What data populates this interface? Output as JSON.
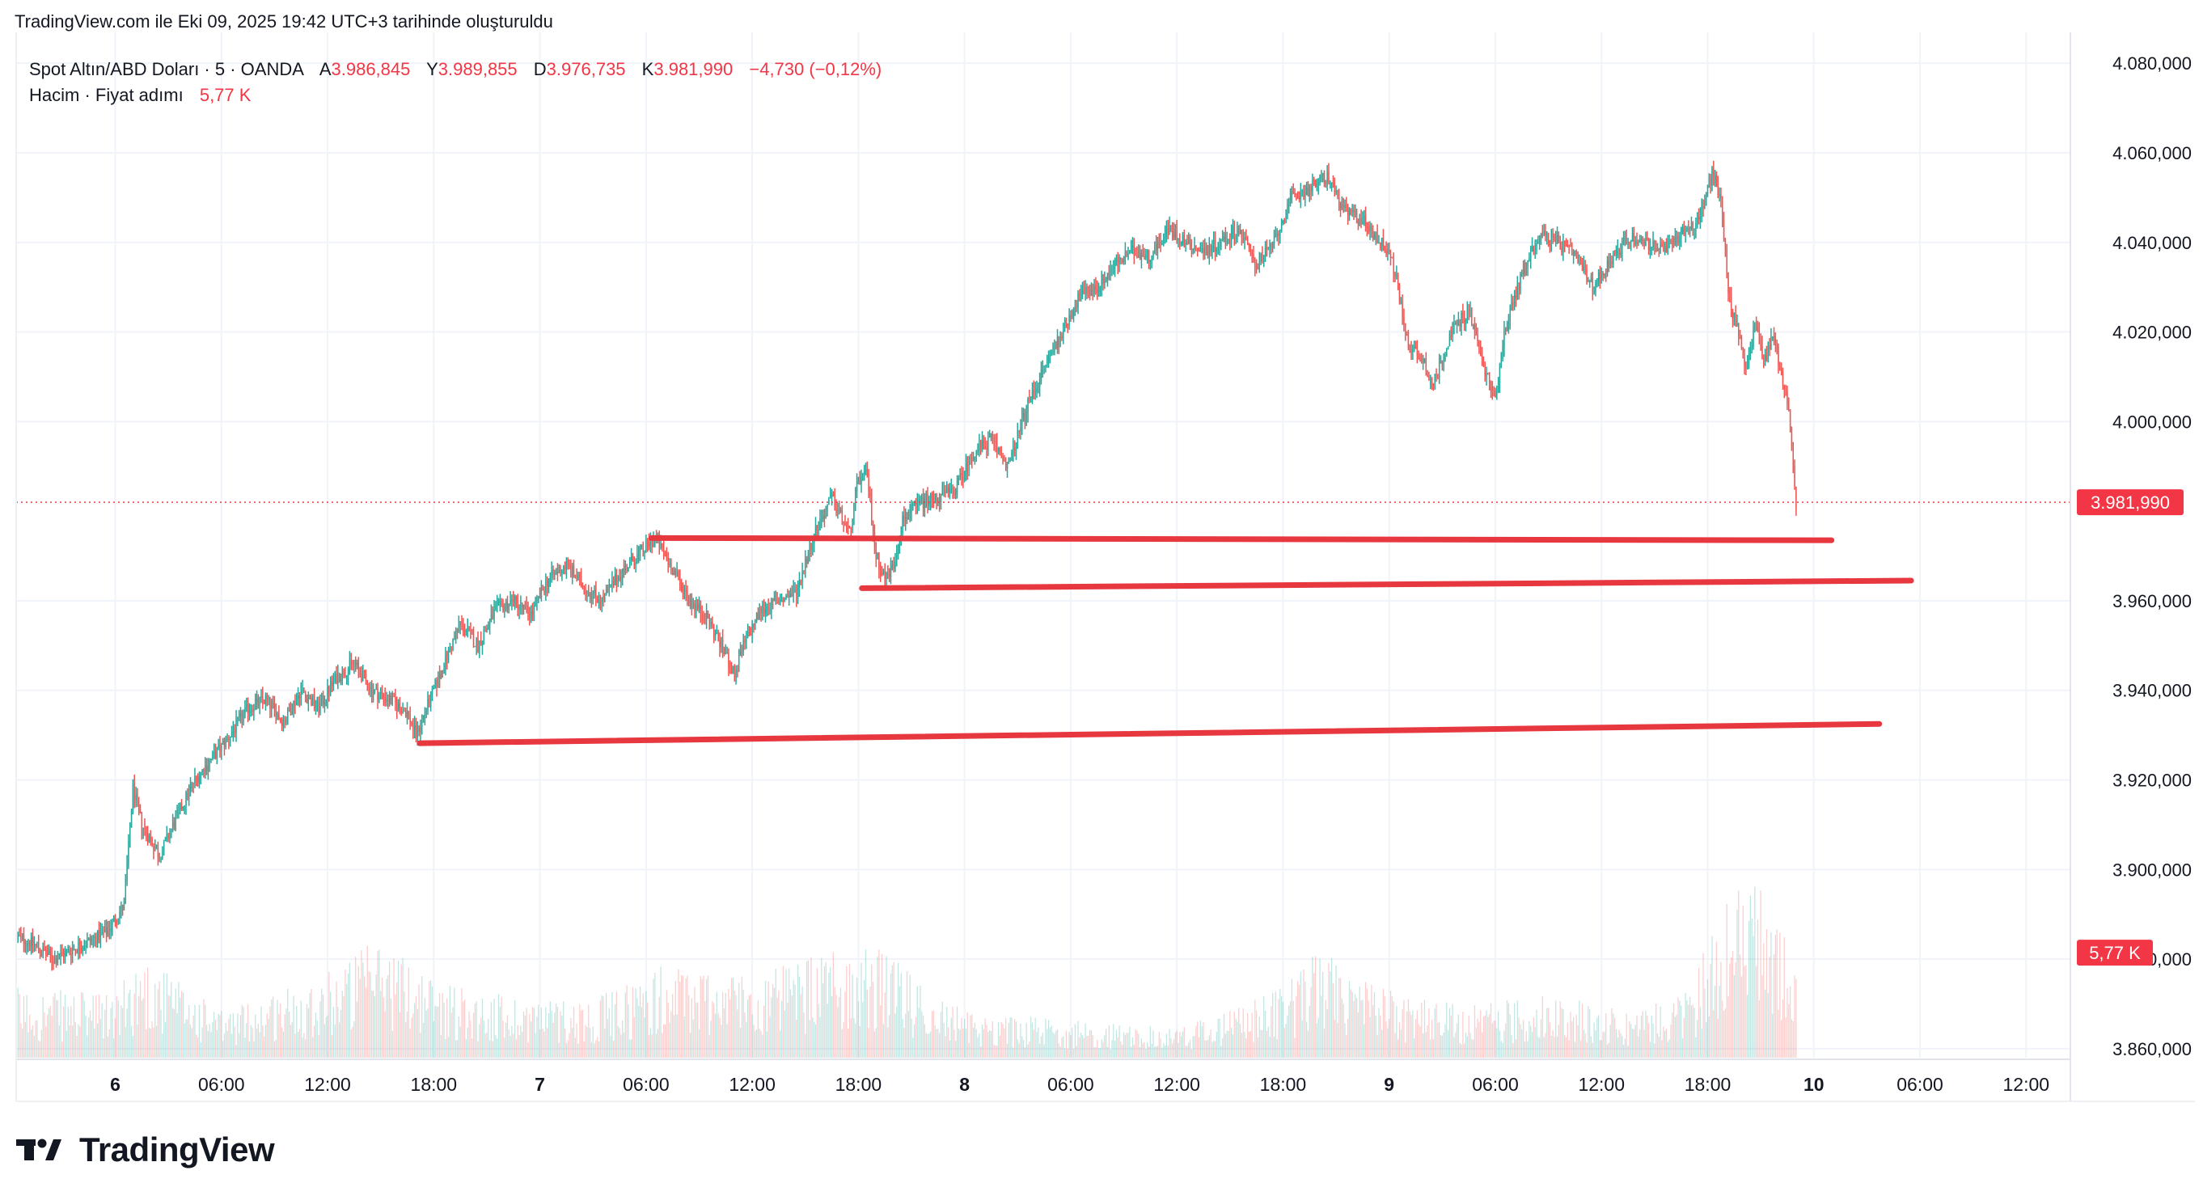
{
  "caption": "TradingView.com ile Eki 09, 2025 19:42 UTC+3 tarihinde oluşturuldu",
  "legend": {
    "symbol": "Spot Altın/ABD Doları · 5 · OANDA",
    "open_key": "A",
    "open": "3.986,845",
    "high_key": "Y",
    "high": "3.989,855",
    "low_key": "D",
    "low": "3.976,735",
    "close_key": "K",
    "close": "3.981,990",
    "change": "−4,730 (−0,12%)",
    "volume_label": "Hacim · Fiyat adımı",
    "volume_value": "5,77 K"
  },
  "brand": "TradingView",
  "colors": {
    "up": "#26a69a",
    "down": "#ef5350",
    "line": "#e8383f",
    "badge": "#f23645",
    "grid": "#f0f3fa",
    "text": "#131722"
  },
  "chart_data": {
    "type": "candlestick",
    "symbol": "Spot Altın/ABD Doları",
    "timeframe": "5",
    "exchange": "OANDA",
    "y_axis": {
      "ticks": [
        "4.080,000",
        "4.060,000",
        "4.040,000",
        "4.020,000",
        "4.000,000",
        "3.960,000",
        "3.940,000",
        "3.920,000",
        "3.900,000",
        "3.880,000",
        "3.860,000"
      ],
      "tick_values": [
        4080,
        4060,
        4040,
        4020,
        4000,
        3960,
        3940,
        3920,
        3900,
        3880,
        3860
      ],
      "range": [
        3858,
        4084
      ]
    },
    "x_axis": {
      "ticks": [
        "6",
        "06:00",
        "12:00",
        "18:00",
        "7",
        "06:00",
        "12:00",
        "18:00",
        "8",
        "06:00",
        "12:00",
        "18:00",
        "9",
        "06:00",
        "12:00",
        "18:00",
        "10",
        "06:00",
        "12:00"
      ],
      "tick_hours": [
        0,
        6,
        12,
        18,
        24,
        30,
        36,
        42,
        48,
        54,
        60,
        66,
        72,
        78,
        84,
        90,
        96,
        102,
        108
      ],
      "bold_ticks": [
        "6",
        "7",
        "8",
        "9",
        "10"
      ],
      "range_hours": [
        -5.6,
        110.5
      ]
    },
    "price_path": [
      [
        -5.5,
        3885
      ],
      [
        -4.5,
        3883
      ],
      [
        -3.5,
        3880
      ],
      [
        -2.5,
        3882
      ],
      [
        -1.5,
        3884
      ],
      [
        -0.5,
        3886
      ],
      [
        0.5,
        3892
      ],
      [
        1.0,
        3918
      ],
      [
        1.5,
        3910
      ],
      [
        2.5,
        3903
      ],
      [
        3.5,
        3912
      ],
      [
        4.5,
        3920
      ],
      [
        5.5,
        3925
      ],
      [
        6.5,
        3930
      ],
      [
        7.5,
        3936
      ],
      [
        8.5,
        3938
      ],
      [
        9.5,
        3933
      ],
      [
        10.5,
        3940
      ],
      [
        11.5,
        3936
      ],
      [
        12.5,
        3943
      ],
      [
        13.5,
        3946
      ],
      [
        14.5,
        3940
      ],
      [
        15.5,
        3938
      ],
      [
        16.5,
        3935
      ],
      [
        17.0,
        3930
      ],
      [
        17.5,
        3935
      ],
      [
        18.5,
        3945
      ],
      [
        19.5,
        3955
      ],
      [
        20.5,
        3950
      ],
      [
        21.5,
        3958
      ],
      [
        22.5,
        3960
      ],
      [
        23.5,
        3957
      ],
      [
        24.5,
        3965
      ],
      [
        25.5,
        3968
      ],
      [
        26.5,
        3963
      ],
      [
        27.5,
        3960
      ],
      [
        28.5,
        3966
      ],
      [
        29.5,
        3970
      ],
      [
        30.5,
        3974
      ],
      [
        31.5,
        3967
      ],
      [
        32.5,
        3960
      ],
      [
        33.5,
        3956
      ],
      [
        34.5,
        3948
      ],
      [
        35.0,
        3943
      ],
      [
        35.5,
        3950
      ],
      [
        36.5,
        3958
      ],
      [
        37.5,
        3960
      ],
      [
        38.5,
        3962
      ],
      [
        39.5,
        3975
      ],
      [
        40.5,
        3983
      ],
      [
        41.0,
        3979
      ],
      [
        41.5,
        3975
      ],
      [
        42.0,
        3987
      ],
      [
        42.5,
        3988
      ],
      [
        43.0,
        3970
      ],
      [
        43.5,
        3965
      ],
      [
        44.0,
        3968
      ],
      [
        44.5,
        3978
      ],
      [
        45.5,
        3982
      ],
      [
        46.5,
        3983
      ],
      [
        47.5,
        3985
      ],
      [
        48.5,
        3993
      ],
      [
        49.5,
        3996
      ],
      [
        50.5,
        3990
      ],
      [
        51.5,
        4003
      ],
      [
        52.5,
        4012
      ],
      [
        53.5,
        4020
      ],
      [
        54.5,
        4028
      ],
      [
        55.5,
        4030
      ],
      [
        56.5,
        4035
      ],
      [
        57.5,
        4038
      ],
      [
        58.5,
        4037
      ],
      [
        59.5,
        4043
      ],
      [
        60.5,
        4040
      ],
      [
        61.5,
        4038
      ],
      [
        62.5,
        4040
      ],
      [
        63.5,
        4043
      ],
      [
        64.5,
        4035
      ],
      [
        65.5,
        4040
      ],
      [
        66.5,
        4050
      ],
      [
        67.5,
        4052
      ],
      [
        68.5,
        4055
      ],
      [
        69.5,
        4047
      ],
      [
        70.5,
        4045
      ],
      [
        71.5,
        4040
      ],
      [
        72.0,
        4038
      ],
      [
        72.5,
        4030
      ],
      [
        73.0,
        4018
      ],
      [
        74.0,
        4013
      ],
      [
        74.5,
        4008
      ],
      [
        75.5,
        4020
      ],
      [
        76.5,
        4025
      ],
      [
        77.5,
        4010
      ],
      [
        78.0,
        4005
      ],
      [
        78.5,
        4020
      ],
      [
        79.5,
        4033
      ],
      [
        80.5,
        4042
      ],
      [
        81.5,
        4040
      ],
      [
        82.5,
        4037
      ],
      [
        83.5,
        4030
      ],
      [
        84.5,
        4036
      ],
      [
        85.5,
        4041
      ],
      [
        86.5,
        4040
      ],
      [
        87.5,
        4038
      ],
      [
        88.5,
        4042
      ],
      [
        89.5,
        4045
      ],
      [
        90.3,
        4056
      ],
      [
        90.8,
        4048
      ],
      [
        91.2,
        4028
      ],
      [
        91.7,
        4020
      ],
      [
        92.2,
        4012
      ],
      [
        92.7,
        4022
      ],
      [
        93.2,
        4013
      ],
      [
        93.7,
        4020
      ],
      [
        94.2,
        4010
      ],
      [
        94.6,
        4003
      ],
      [
        94.8,
        3990
      ],
      [
        95.0,
        3981.99
      ]
    ],
    "volume_path": [
      [
        -5.5,
        60
      ],
      [
        0,
        55
      ],
      [
        1.5,
        90
      ],
      [
        6,
        40
      ],
      [
        12,
        75
      ],
      [
        15,
        105
      ],
      [
        18,
        70
      ],
      [
        21,
        55
      ],
      [
        27,
        50
      ],
      [
        31,
        80
      ],
      [
        37,
        75
      ],
      [
        41,
        95
      ],
      [
        43,
        95
      ],
      [
        48,
        40
      ],
      [
        60,
        25
      ],
      [
        66,
        60
      ],
      [
        68,
        95
      ],
      [
        70,
        70
      ],
      [
        73,
        55
      ],
      [
        76,
        45
      ],
      [
        81,
        55
      ],
      [
        86,
        40
      ],
      [
        89,
        60
      ],
      [
        91,
        140
      ],
      [
        92.5,
        160
      ],
      [
        94,
        110
      ],
      [
        95,
        100
      ]
    ],
    "volume_y_range": [
      0,
      330
    ],
    "horizontal_lines": [
      {
        "from": [
          30.3,
          3974.0
        ],
        "to": [
          97.0,
          3973.5
        ]
      },
      {
        "from": [
          42.2,
          3962.8
        ],
        "to": [
          101.5,
          3964.5
        ]
      },
      {
        "from": [
          17.2,
          3928.2
        ],
        "to": [
          99.7,
          3932.5
        ]
      }
    ],
    "last_price": 3981.99,
    "last_price_label": "3.981,990",
    "last_volume_label": "5,77 K",
    "grid": true
  }
}
